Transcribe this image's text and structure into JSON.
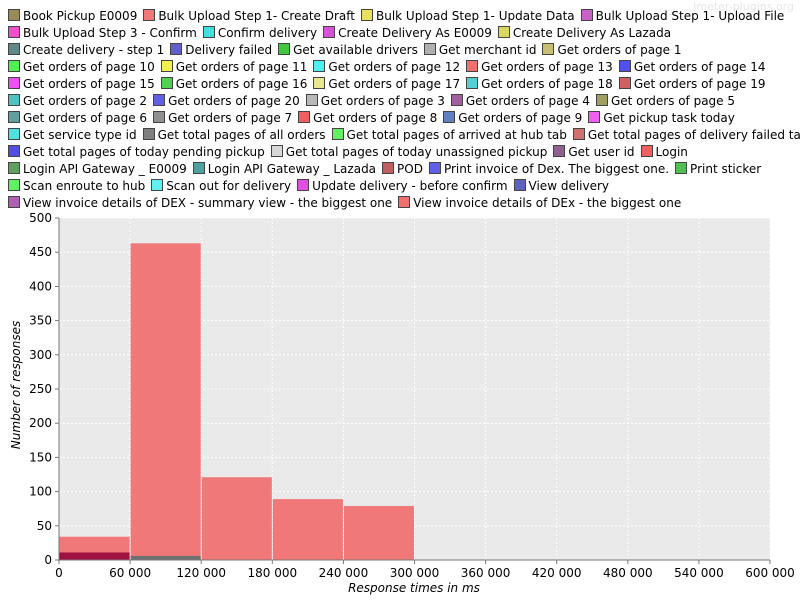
{
  "watermark": "jmeter-plugins.org",
  "legend": {
    "rows": [
      [
        [
          "Book Pickup E0009",
          "#9a8a5a"
        ],
        [
          "Bulk Upload Step 1- Create Draft",
          "#f07878"
        ],
        [
          "Bulk Upload Step 1- Update Data",
          "#e8e060"
        ],
        [
          "Bulk Upload Step 1- Upload File",
          "#c860c8"
        ]
      ],
      [
        [
          "Bulk Upload Step 3 - Confirm",
          "#f050c8"
        ],
        [
          "Confirm delivery",
          "#40e0e0"
        ],
        [
          "Create Delivery As E0009",
          "#d850d8"
        ],
        [
          "Create Delivery As Lazada",
          "#d8d860"
        ]
      ],
      [
        [
          "Create delivery - step 1",
          "#608888"
        ],
        [
          "Delivery failed",
          "#6060c8"
        ],
        [
          "Get available drivers",
          "#40c840"
        ],
        [
          "Get merchant id",
          "#b0b0b0"
        ],
        [
          "Get orders of page 1",
          "#c8c070"
        ]
      ],
      [
        [
          "Get orders of page 10",
          "#50f050"
        ],
        [
          "Get orders of page 11",
          "#f0f050"
        ],
        [
          "Get orders of page 12",
          "#50f0f0"
        ],
        [
          "Get orders of page 13",
          "#f07070"
        ],
        [
          "Get orders of page 14",
          "#5050f0"
        ]
      ],
      [
        [
          "Get orders of page 15",
          "#f050f0"
        ],
        [
          "Get orders of page 16",
          "#50d050"
        ],
        [
          "Get orders of page 17",
          "#e8e890"
        ],
        [
          "Get orders of page 18",
          "#50d0d0"
        ],
        [
          "Get orders of page 19",
          "#d06060"
        ]
      ],
      [
        [
          "Get orders of page 2",
          "#50c0c0"
        ],
        [
          "Get orders of page 20",
          "#6060e0"
        ],
        [
          "Get orders of page 3",
          "#b8b8b8"
        ],
        [
          "Get orders of page 4",
          "#a060a0"
        ],
        [
          "Get orders of page 5",
          "#a0a060"
        ]
      ],
      [
        [
          "Get orders of page 6",
          "#60a0a0"
        ],
        [
          "Get orders of page 7",
          "#909090"
        ],
        [
          "Get orders of page 8",
          "#f06060"
        ],
        [
          "Get orders of page 9",
          "#6080c0"
        ],
        [
          "Get pickup task today",
          "#f060f0"
        ]
      ],
      [
        [
          "Get service type id",
          "#50e0e0"
        ],
        [
          "Get total pages of all orders",
          "#808080"
        ],
        [
          "Get total pages of arrived at hub tab",
          "#60f060"
        ],
        [
          "Get total pages of delivery failed tab",
          "#d07070"
        ]
      ],
      [
        [
          "Get total pages of today pending pickup",
          "#5050e0"
        ],
        [
          "Get total pages of today unassigned pickup",
          "#d8d8d8"
        ],
        [
          "Get user id",
          "#906090"
        ],
        [
          "Login",
          "#f06060"
        ]
      ],
      [
        [
          "Login API Gateway _ E0009",
          "#60a060"
        ],
        [
          "Login API Gateway _ Lazada",
          "#50a0a0"
        ],
        [
          "POD",
          "#c06060"
        ],
        [
          "Print invoice of Dex. The biggest one.",
          "#6060e8"
        ],
        [
          "Print sticker",
          "#50c050"
        ]
      ],
      [
        [
          "Scan enroute to hub",
          "#60f060"
        ],
        [
          "Scan out for delivery",
          "#60f0f0"
        ],
        [
          "Update delivery - before confirm",
          "#e050e0"
        ],
        [
          "View delivery",
          "#6060c0"
        ]
      ],
      [
        [
          "View invoice details of DEX - summary view - the biggest one",
          "#b060b0"
        ],
        [
          "View invoice details of DEx - the biggest one",
          "#f07070"
        ]
      ]
    ]
  },
  "chart_data": {
    "type": "bar",
    "xlabel": "Response times in ms",
    "ylabel": "Number of responses",
    "xlim": [
      0,
      600000
    ],
    "ylim": [
      0,
      500
    ],
    "xticks": [
      "0",
      "60 000",
      "120 000",
      "180 000",
      "240 000",
      "300 000",
      "360 000",
      "420 000",
      "480 000",
      "540 000",
      "600 000"
    ],
    "yticks": [
      "0",
      "50",
      "100",
      "150",
      "200",
      "250",
      "300",
      "350",
      "400",
      "450",
      "500"
    ],
    "bin_width": 60000,
    "bins": [
      0,
      60000,
      120000,
      180000,
      240000
    ],
    "series": [
      {
        "name": "Bulk Upload Step 1- Create Draft",
        "color": "#f07878",
        "values": [
          34,
          463,
          121,
          89,
          79
        ]
      },
      {
        "name": "POD",
        "color": "#a01040",
        "values": [
          11,
          0,
          0,
          0,
          0
        ]
      },
      {
        "name": "Get total pages of all orders",
        "color": "#707070",
        "values": [
          0,
          6,
          0,
          0,
          0
        ]
      }
    ]
  }
}
